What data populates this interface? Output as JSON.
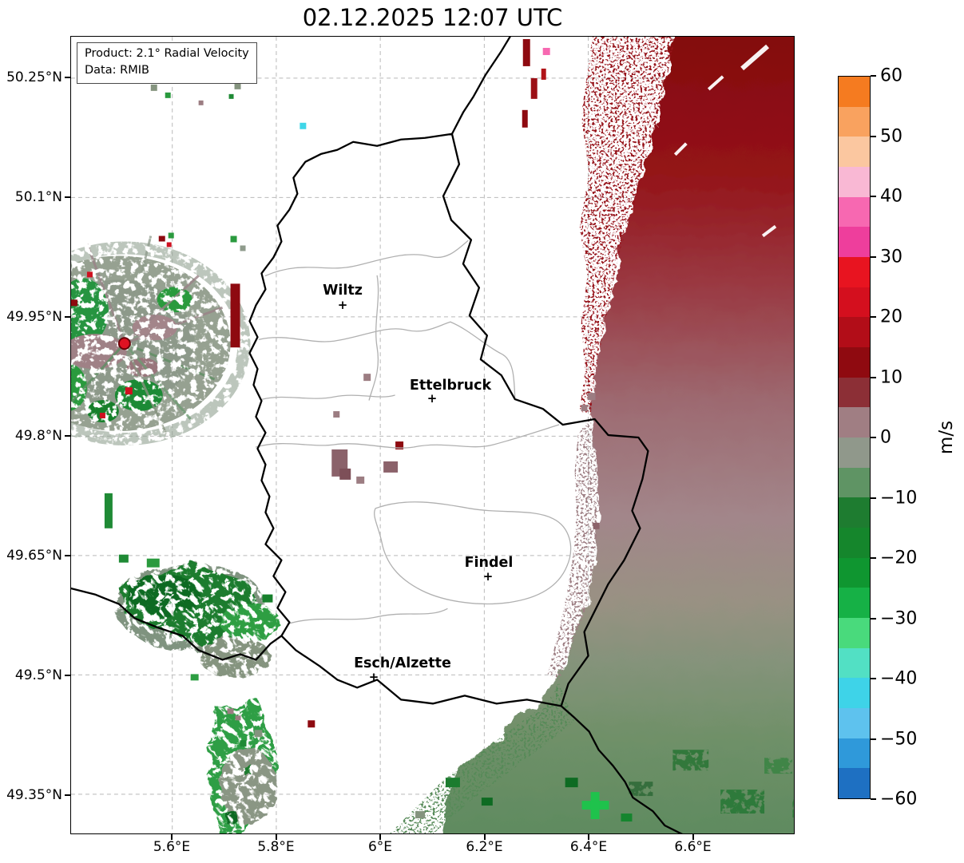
{
  "title": "02.12.2025 12:07 UTC",
  "info_box": {
    "product_line": "Product: 2.1° Radial Velocity",
    "data_line": "Data: RMIB"
  },
  "map": {
    "cities": [
      {
        "label": "Wiltz",
        "marker": "+"
      },
      {
        "label": "Ettelbruck",
        "marker": "+"
      },
      {
        "label": "Findel",
        "marker": "+"
      },
      {
        "label": "Esch/Alzette",
        "marker": "+"
      }
    ],
    "radar_dot_color": "#e01222"
  },
  "chart_data": {
    "type": "heatmap",
    "title": "02.12.2025 12:07 UTC",
    "product": "2.1° Radial Velocity",
    "data_source": "RMIB",
    "x_axis": {
      "label_ticks": [
        "5.6°E",
        "5.8°E",
        "6°E",
        "6.2°E",
        "6.4°E",
        "6.6°E"
      ],
      "approx_range_deg_e": [
        5.41,
        6.79
      ],
      "grid": "dashed"
    },
    "y_axis": {
      "label_ticks": [
        "50.25°N",
        "50.1°N",
        "49.95°N",
        "49.8°N",
        "49.65°N",
        "49.5°N",
        "49.35°N"
      ],
      "approx_range_deg_n": [
        49.3,
        50.3
      ],
      "grid": "dashed"
    },
    "colorbar": {
      "label": "m/s",
      "range": [
        -60,
        60
      ],
      "cell_step": 5,
      "tick_labels": [
        "60",
        "50",
        "40",
        "30",
        "20",
        "10",
        "0",
        "−10",
        "−20",
        "−30",
        "−40",
        "−50",
        "−60"
      ],
      "cell_colors_top_to_bottom": [
        "#f57b20",
        "#f9a25f",
        "#fbc7a0",
        "#f9b8d4",
        "#f768b1",
        "#ee3e9c",
        "#e81420",
        "#d40f1e",
        "#b20d18",
        "#8f0a10",
        "#8c2f36",
        "#a07e83",
        "#90988b",
        "#5f9464",
        "#1e7c30",
        "#15862c",
        "#0f9630",
        "#16b146",
        "#49da7c",
        "#52e0c4",
        "#3ed3e8",
        "#5ec2ee",
        "#2f99da",
        "#1e70c2"
      ]
    },
    "cities_labeled": [
      "Wiltz",
      "Ettelbruck",
      "Findel",
      "Esch/Alzette"
    ],
    "radar_site": {
      "approx_lon_e": 5.51,
      "approx_lat_n": 49.92,
      "marker": "red dot"
    },
    "velocity_features": [
      {
        "area": "northeast sector (beyond eastern border)",
        "approx_value_ms": "+10 to +25",
        "color_family": "dark red"
      },
      {
        "area": "east-central sector",
        "approx_value_ms": "0 to +10",
        "color_family": "mauve-gray"
      },
      {
        "area": "south / southeast sector",
        "approx_value_ms": "-10 to 0",
        "color_family": "gray-green"
      },
      {
        "area": "southwest patches",
        "approx_value_ms": "-20 to -5",
        "color_family": "green"
      },
      {
        "area": "ground-clutter ring around radar site (west)",
        "approx_value_ms": "-5 to +5 mixed",
        "color_family": "speckled gray-green / mauve with red and green spots"
      }
    ]
  }
}
